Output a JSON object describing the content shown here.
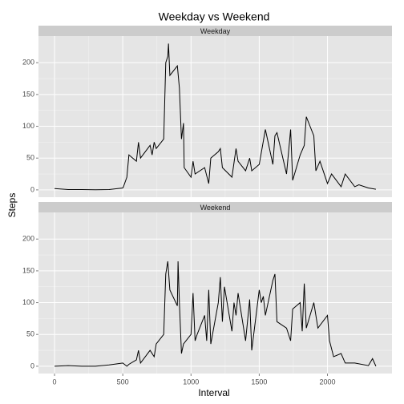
{
  "chart_data": {
    "type": "line",
    "title": "Weekday vs Weekend",
    "x_label": "Interval",
    "y_label": "Steps",
    "color": "#000000",
    "grid": true,
    "xlim": [
      -117.75,
      2472.75
    ],
    "xticks": [
      0,
      500,
      1000,
      1500,
      2000
    ],
    "ylim": [
      -11.5,
      241.9
    ],
    "yticks": [
      0,
      50,
      100,
      150,
      200
    ],
    "panels": [
      {
        "label": "Weekday",
        "x": [
          0,
          100,
          200,
          300,
          400,
          500,
          505,
          530,
          545,
          600,
          615,
          630,
          700,
          715,
          730,
          745,
          800,
          815,
          830,
          835,
          845,
          900,
          915,
          930,
          945,
          950,
          1000,
          1015,
          1030,
          1100,
          1130,
          1145,
          1200,
          1215,
          1230,
          1300,
          1330,
          1345,
          1400,
          1430,
          1445,
          1500,
          1545,
          1600,
          1615,
          1630,
          1700,
          1730,
          1745,
          1800,
          1830,
          1845,
          1900,
          1915,
          1945,
          2000,
          2030,
          2100,
          2130,
          2200,
          2230,
          2300,
          2355
        ],
        "values": [
          2,
          0.5,
          0.5,
          0.2,
          0.5,
          3,
          5,
          20,
          55,
          45,
          75,
          50,
          70,
          55,
          75,
          65,
          80,
          200,
          210,
          230,
          180,
          195,
          160,
          80,
          105,
          35,
          20,
          45,
          25,
          35,
          10,
          50,
          60,
          65,
          35,
          20,
          65,
          45,
          30,
          50,
          30,
          40,
          95,
          40,
          85,
          90,
          25,
          95,
          15,
          55,
          70,
          115,
          85,
          30,
          45,
          10,
          25,
          5,
          25,
          5,
          8,
          3,
          1
        ]
      },
      {
        "label": "Weekend",
        "x": [
          0,
          100,
          200,
          300,
          400,
          500,
          530,
          545,
          600,
          615,
          630,
          700,
          730,
          745,
          800,
          815,
          830,
          845,
          900,
          905,
          915,
          930,
          945,
          1000,
          1015,
          1030,
          1045,
          1100,
          1115,
          1130,
          1145,
          1200,
          1215,
          1230,
          1245,
          1300,
          1315,
          1330,
          1345,
          1400,
          1430,
          1445,
          1500,
          1515,
          1530,
          1545,
          1600,
          1615,
          1630,
          1700,
          1730,
          1745,
          1800,
          1815,
          1830,
          1845,
          1900,
          1930,
          2000,
          2015,
          2045,
          2100,
          2130,
          2200,
          2300,
          2330,
          2355
        ],
        "values": [
          0,
          1,
          0,
          0,
          2,
          5,
          0,
          3,
          10,
          25,
          5,
          25,
          15,
          35,
          50,
          145,
          165,
          120,
          95,
          165,
          100,
          20,
          35,
          50,
          115,
          40,
          50,
          80,
          40,
          120,
          35,
          100,
          140,
          70,
          125,
          55,
          100,
          80,
          115,
          40,
          105,
          25,
          120,
          100,
          110,
          80,
          135,
          145,
          70,
          60,
          40,
          90,
          100,
          55,
          130,
          60,
          100,
          60,
          80,
          40,
          15,
          20,
          5,
          5,
          1,
          12,
          0
        ]
      }
    ]
  }
}
